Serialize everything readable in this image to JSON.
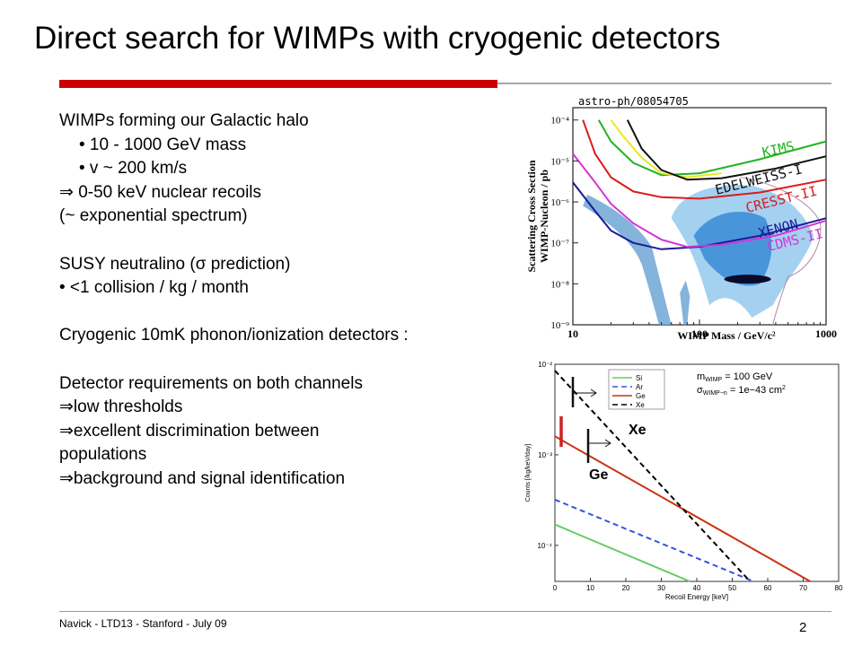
{
  "slide": {
    "title": "Direct search for WIMPs with cryogenic detectors",
    "body_lines": [
      {
        "text": "WIMPs forming our Galactic halo",
        "indent": false
      },
      {
        "text": "• 10 - 1000 GeV mass",
        "indent": true
      },
      {
        "text": "•  v ~ 200 km/s",
        "indent": true
      },
      {
        "text": "⇒ 0-50 keV nuclear recoils",
        "indent": false
      },
      {
        "text": "(~ exponential spectrum)",
        "indent": false
      },
      {
        "text": "",
        "indent": false
      },
      {
        "text": "SUSY neutralino (σ prediction)",
        "indent": false
      },
      {
        "text": "• <1 collision / kg / month",
        "indent": false
      },
      {
        "text": "",
        "indent": false
      },
      {
        "text": "Cryogenic 10mK phonon/ionization detectors :",
        "indent": false
      },
      {
        "text": "",
        "indent": false
      },
      {
        "text": "Detector requirements on both channels",
        "indent": false
      },
      {
        "text": "⇒low thresholds",
        "indent": false
      },
      {
        "text": "⇒excellent discrimination between",
        "indent": false
      },
      {
        "text": "populations",
        "indent": false
      },
      {
        "text": "⇒background and signal identification",
        "indent": false
      }
    ],
    "footer": "Navick - LTD13 - Stanford - July 09",
    "page_number": "2",
    "accent_color": "#cc0000"
  },
  "chart_data": [
    {
      "type": "line",
      "source_label": "astro-ph/08054705",
      "xlabel": "WIMP Mass / GeV/c²",
      "ylabel_line1": "Scattering Cross Section",
      "ylabel_line2": "WIMP-Nucleon / pb",
      "x_scale": "log",
      "y_scale": "log",
      "xlim": [
        10,
        1000
      ],
      "ylim": [
        1e-09,
        0.0002
      ],
      "x_ticks": [
        {
          "value": 10,
          "label": "10"
        },
        {
          "value": 100,
          "label": "100"
        },
        {
          "value": 1000,
          "label": "1000"
        }
      ],
      "y_ticks": [
        {
          "value": 1e-09,
          "label": "10⁻⁹"
        },
        {
          "value": 1e-08,
          "label": "10⁻⁸"
        },
        {
          "value": 1e-07,
          "label": "10⁻⁷"
        },
        {
          "value": 1e-06,
          "label": "10⁻⁶"
        },
        {
          "value": 1e-05,
          "label": "10⁻⁵"
        },
        {
          "value": 0.0001,
          "label": "10⁻⁴"
        }
      ],
      "series": [
        {
          "name": "KIMS",
          "color": "#22b322",
          "x": [
            16,
            20,
            30,
            50,
            100,
            300,
            1000
          ],
          "y": [
            0.0001,
            3e-05,
            9e-06,
            4.5e-06,
            5e-06,
            1.1e-05,
            3e-05
          ]
        },
        {
          "name": "",
          "color": "#e8e820",
          "x": [
            20,
            25,
            35,
            50,
            80,
            150
          ],
          "y": [
            0.0001,
            4e-05,
            1.2e-05,
            5e-06,
            4e-06,
            5e-06
          ]
        },
        {
          "name": "EDELWEISS-I",
          "color": "#111111",
          "x": [
            27,
            35,
            50,
            80,
            150,
            400,
            1000
          ],
          "y": [
            0.0001,
            2e-05,
            6e-06,
            3.5e-06,
            3.8e-06,
            6.5e-06,
            1.3e-05
          ]
        },
        {
          "name": "CRESST-II",
          "color": "#dd1a1a",
          "x": [
            12,
            15,
            20,
            30,
            50,
            100,
            300,
            1000
          ],
          "y": [
            0.0001,
            1.5e-05,
            4e-06,
            1.8e-06,
            1.3e-06,
            1.2e-06,
            1.7e-06,
            3.5e-06
          ]
        },
        {
          "name": "XENON",
          "color": "#1a1a99",
          "x": [
            10,
            15,
            20,
            30,
            50,
            100,
            300,
            1000
          ],
          "y": [
            3e-06,
            6e-07,
            2e-07,
            1e-07,
            7e-08,
            8e-08,
            1.5e-07,
            4e-07
          ]
        },
        {
          "name": "CDMS-II",
          "color": "#d435d4",
          "x": [
            10,
            15,
            20,
            30,
            50,
            80,
            150,
            400,
            1000
          ],
          "y": [
            1.5e-05,
            3e-06,
            9e-07,
            3e-07,
            1.2e-07,
            8e-08,
            9e-08,
            1.5e-07,
            3.5e-07
          ]
        }
      ]
    },
    {
      "type": "line",
      "xlabel": "Recoil Energy [keV]",
      "ylabel": "Counts [/kg/keV/day]",
      "y_scale": "log",
      "xlim": [
        0,
        80
      ],
      "ylim": [
        4e-05,
        0.01
      ],
      "x_ticks": [
        0,
        10,
        20,
        30,
        40,
        50,
        60,
        70,
        80
      ],
      "y_ticks": [
        {
          "value": 0.01,
          "label": "10⁻²"
        },
        {
          "value": 0.001,
          "label": "10⁻³"
        },
        {
          "value": 0.0001,
          "label": "10⁻⁴"
        }
      ],
      "legend_position": "top-left",
      "legend": [
        {
          "name": "Si",
          "color": "#66cc66",
          "dash": ""
        },
        {
          "name": "Ar",
          "color": "#3355dd",
          "dash": "6,4"
        },
        {
          "name": "Ge",
          "color": "#cc3311",
          "dash": ""
        },
        {
          "name": "Xe",
          "color": "#000000",
          "dash": "6,4"
        }
      ],
      "param_line1_main": "m",
      "param_line1_sub": "WIMP",
      "param_line1_rest": " = 100 GeV",
      "param_line2_main": "σ",
      "param_line2_sub": "WIMP−n",
      "param_line2_rest": " = 1e−43 cm",
      "param_line2_sup": "2",
      "series": [
        {
          "name": "Si",
          "color": "#66cc66",
          "dash": "",
          "x": [
            0,
            38
          ],
          "y": [
            0.00017,
            4e-05
          ]
        },
        {
          "name": "Ar",
          "color": "#3355dd",
          "dash": "6,4",
          "x": [
            0,
            56
          ],
          "y": [
            0.00032,
            4e-05
          ]
        },
        {
          "name": "Ge",
          "color": "#cc3311",
          "dash": "",
          "x": [
            0,
            72
          ],
          "y": [
            0.0016,
            4e-05
          ]
        },
        {
          "name": "Xe",
          "color": "#000000",
          "dash": "6,4",
          "x": [
            0,
            55
          ],
          "y": [
            0.0085,
            4e-05
          ]
        }
      ],
      "threshold_markers": [
        {
          "label": "Xe",
          "x": 10,
          "color": "#111111"
        },
        {
          "label": "Ge",
          "x": 10,
          "color": "#111111"
        },
        {
          "label": "",
          "x": 1.5,
          "color": "#cc2222"
        }
      ],
      "marker_label_xe": "Xe",
      "marker_label_ge": "Ge"
    }
  ]
}
